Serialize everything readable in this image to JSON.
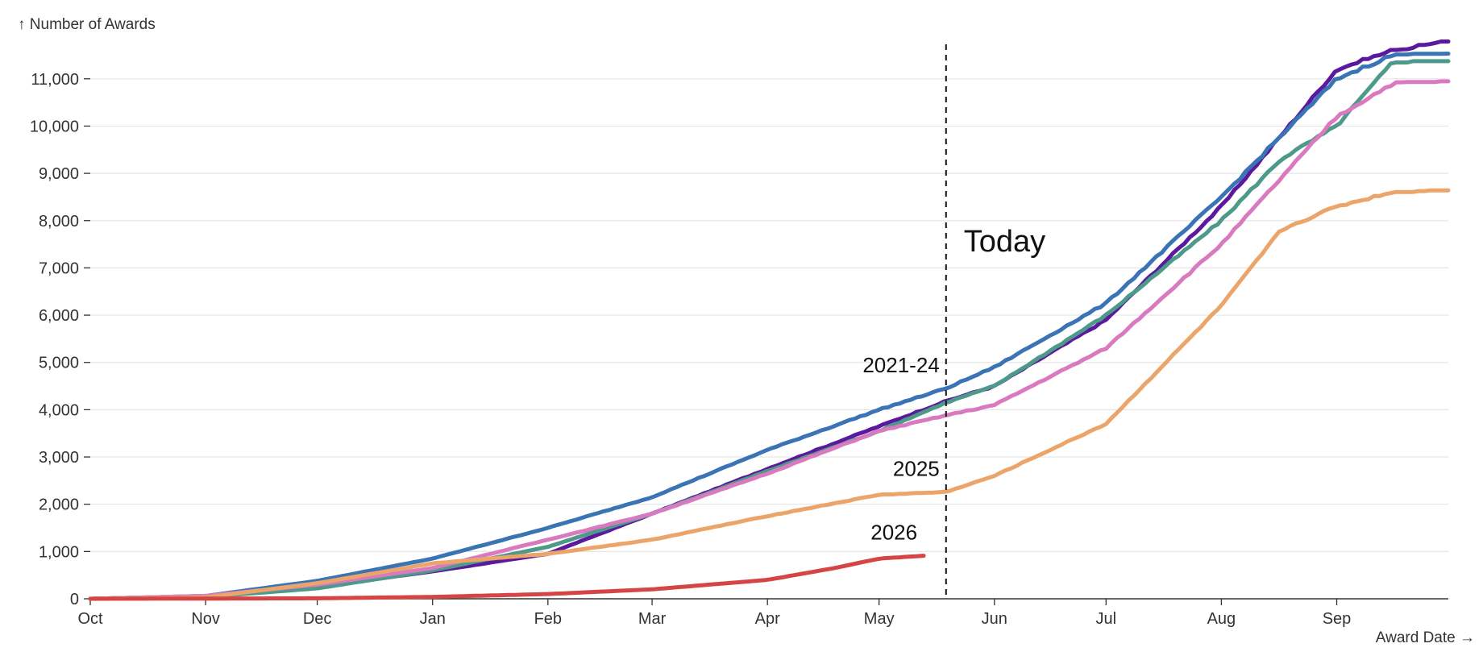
{
  "chart_data": {
    "type": "line",
    "y_axis_title": "↑ Number of Awards",
    "x_axis_title": "Award Date →",
    "ylim": [
      0,
      11900
    ],
    "y_ticks": [
      0,
      1000,
      2000,
      3000,
      4000,
      5000,
      6000,
      7000,
      8000,
      9000,
      10000,
      11000
    ],
    "y_tick_labels": [
      "0",
      "1,000",
      "2,000",
      "3,000",
      "4,000",
      "5,000",
      "6,000",
      "7,000",
      "8,000",
      "9,000",
      "10,000",
      "11,000"
    ],
    "x_ticks": [
      0,
      31,
      61,
      92,
      123,
      151,
      182,
      212,
      243,
      273,
      304,
      335
    ],
    "x_tick_labels": [
      "Oct",
      "Nov",
      "Dec",
      "Jan",
      "Feb",
      "Mar",
      "Apr",
      "May",
      "Jun",
      "Jul",
      "Aug",
      "Sep"
    ],
    "xlim": [
      0,
      365
    ],
    "grid": true,
    "today": {
      "label": "Today",
      "x": 230
    },
    "series": [
      {
        "color": "#5b1a9e",
        "points": [
          [
            0,
            0
          ],
          [
            31,
            50
          ],
          [
            61,
            250
          ],
          [
            92,
            580
          ],
          [
            123,
            950
          ],
          [
            151,
            1800
          ],
          [
            182,
            2750
          ],
          [
            212,
            3650
          ],
          [
            230,
            4180
          ],
          [
            243,
            4500
          ],
          [
            273,
            5900
          ],
          [
            304,
            8300
          ],
          [
            335,
            11200
          ],
          [
            350,
            11600
          ],
          [
            365,
            11780
          ]
        ]
      },
      {
        "color": "#4e9a8a",
        "points": [
          [
            0,
            0
          ],
          [
            31,
            40
          ],
          [
            61,
            220
          ],
          [
            92,
            600
          ],
          [
            123,
            1100
          ],
          [
            151,
            1800
          ],
          [
            182,
            2700
          ],
          [
            212,
            3550
          ],
          [
            230,
            4150
          ],
          [
            243,
            4500
          ],
          [
            273,
            6000
          ],
          [
            304,
            8000
          ],
          [
            320,
            9300
          ],
          [
            335,
            10000
          ],
          [
            345,
            10900
          ],
          [
            350,
            11350
          ],
          [
            365,
            11360
          ]
        ]
      },
      {
        "color": "#3b74b5",
        "points": [
          [
            0,
            0
          ],
          [
            31,
            60
          ],
          [
            61,
            380
          ],
          [
            92,
            850
          ],
          [
            123,
            1500
          ],
          [
            151,
            2150
          ],
          [
            182,
            3150
          ],
          [
            212,
            4000
          ],
          [
            230,
            4450
          ],
          [
            243,
            4900
          ],
          [
            273,
            6250
          ],
          [
            304,
            8500
          ],
          [
            335,
            11000
          ],
          [
            350,
            11500
          ],
          [
            365,
            11500
          ]
        ]
      },
      {
        "color": "#d97ac0",
        "points": [
          [
            0,
            0
          ],
          [
            31,
            60
          ],
          [
            61,
            300
          ],
          [
            92,
            650
          ],
          [
            123,
            1250
          ],
          [
            151,
            1800
          ],
          [
            182,
            2650
          ],
          [
            212,
            3550
          ],
          [
            230,
            3880
          ],
          [
            243,
            4100
          ],
          [
            273,
            5300
          ],
          [
            304,
            7500
          ],
          [
            335,
            10200
          ],
          [
            350,
            10900
          ],
          [
            365,
            10930
          ]
        ]
      },
      {
        "name": "2025",
        "color": "#eba46a",
        "points": [
          [
            0,
            0
          ],
          [
            31,
            30
          ],
          [
            61,
            330
          ],
          [
            92,
            750
          ],
          [
            123,
            950
          ],
          [
            151,
            1250
          ],
          [
            182,
            1750
          ],
          [
            212,
            2200
          ],
          [
            230,
            2260
          ],
          [
            243,
            2600
          ],
          [
            273,
            3700
          ],
          [
            304,
            6200
          ],
          [
            320,
            7800
          ],
          [
            335,
            8300
          ],
          [
            350,
            8600
          ],
          [
            365,
            8640
          ]
        ]
      },
      {
        "name": "2026",
        "color": "#d64545",
        "points": [
          [
            0,
            0
          ],
          [
            61,
            10
          ],
          [
            92,
            40
          ],
          [
            123,
            100
          ],
          [
            151,
            200
          ],
          [
            182,
            400
          ],
          [
            200,
            650
          ],
          [
            212,
            850
          ],
          [
            224,
            910
          ]
        ]
      }
    ],
    "annotations": [
      {
        "text": "2021-24",
        "attach_series": 2,
        "x": 230
      },
      {
        "text": "2025",
        "attach_series": 4,
        "x": 230
      },
      {
        "text": "2026",
        "attach_series": 5,
        "x": 224
      }
    ]
  }
}
